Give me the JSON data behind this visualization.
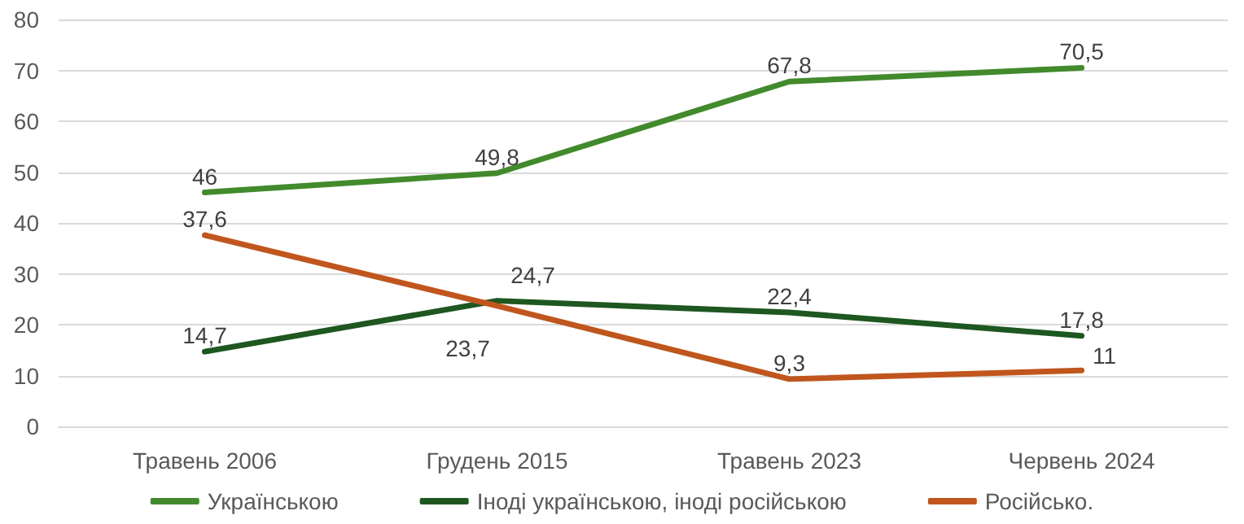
{
  "chart_data": {
    "type": "line",
    "categories": [
      "Травень 2006",
      "Грудень 2015",
      "Травень 2023",
      "Червень 2024"
    ],
    "series": [
      {
        "name": "Українською",
        "color": "#428a2c",
        "values": [
          46,
          49.8,
          67.8,
          70.5
        ],
        "value_labels": [
          "46",
          "49,8",
          "67,8",
          "70,5"
        ]
      },
      {
        "name": "Іноді українською, іноді російською",
        "color": "#1e5720",
        "values": [
          14.7,
          24.7,
          22.4,
          17.8
        ],
        "value_labels": [
          "14,7",
          "24,7",
          "22,4",
          "17,8"
        ]
      },
      {
        "name": "Російсько.",
        "color": "#c0561e",
        "values": [
          37.6,
          23.7,
          9.3,
          11
        ],
        "value_labels": [
          "37,6",
          "23,7",
          "9,3",
          "11"
        ]
      }
    ],
    "ylim": [
      0,
      80
    ],
    "yticks": [
      0,
      10,
      20,
      30,
      40,
      50,
      60,
      70,
      80
    ],
    "grid": "y",
    "legend": "bottom",
    "marker": "none",
    "line_style": "solid"
  }
}
